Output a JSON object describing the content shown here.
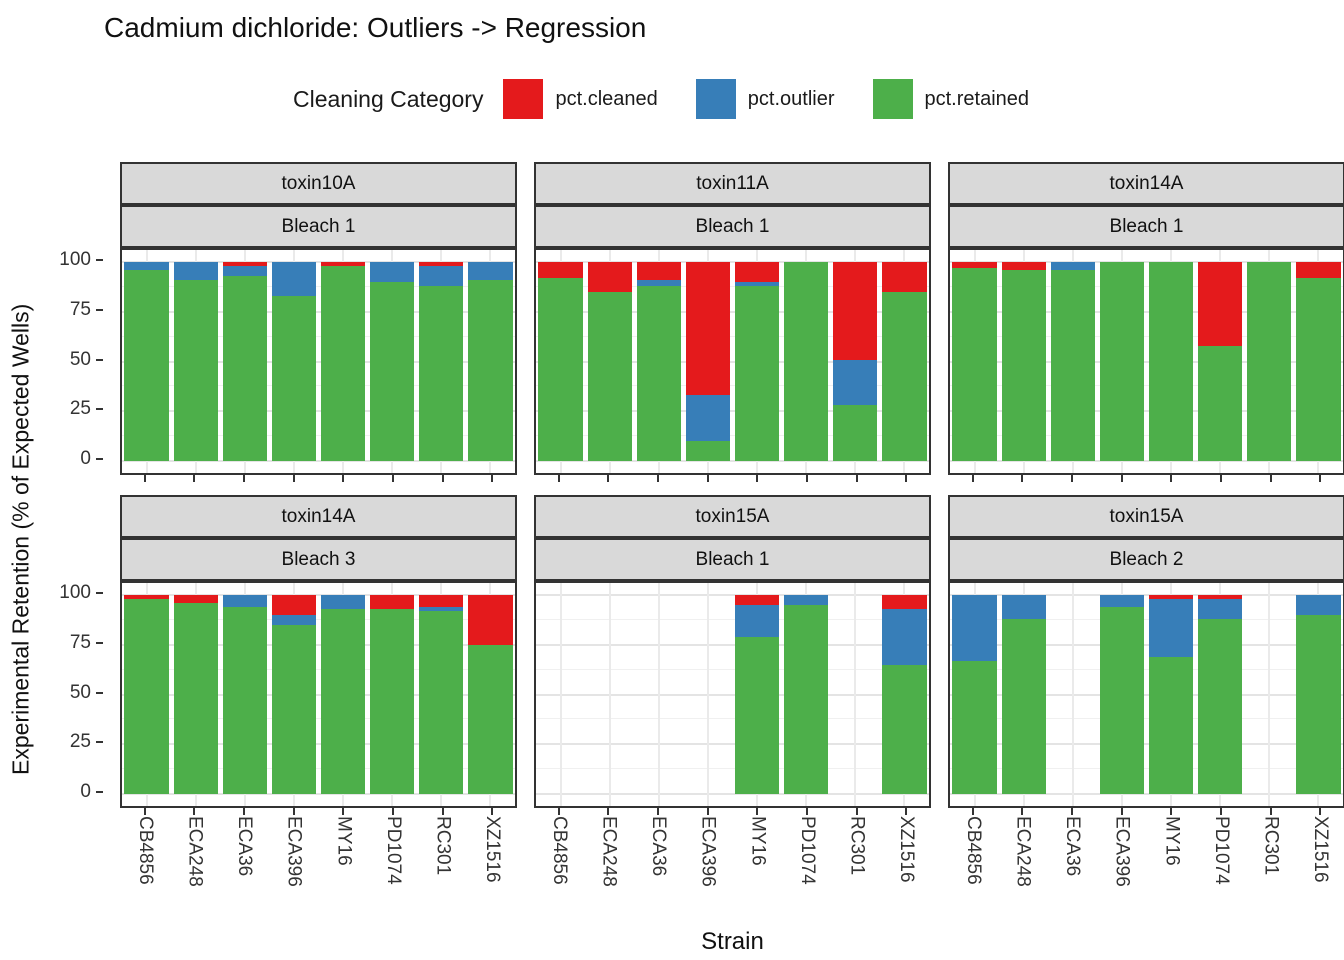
{
  "title": "Cadmium dichloride: Outliers -> Regression",
  "legend": {
    "title": "Cleaning Category",
    "items": [
      {
        "label": "pct.cleaned",
        "color": "#E41A1C"
      },
      {
        "label": "pct.outlier",
        "color": "#377EB8"
      },
      {
        "label": "pct.retained",
        "color": "#4DAF4A"
      }
    ]
  },
  "chart_data": {
    "type": "bar",
    "stacked": true,
    "title": "Cadmium dichloride: Outliers -> Regression",
    "xlabel": "Strain",
    "ylabel": "Experimental Retention (% of Expected Wells)",
    "ylim": [
      0,
      100
    ],
    "yticks": [
      0,
      25,
      50,
      75,
      100
    ],
    "grid": true,
    "legend_position": "top",
    "categories": [
      "CB4856",
      "ECA248",
      "ECA36",
      "ECA396",
      "MY16",
      "PD1074",
      "RC301",
      "XZ1516"
    ],
    "series_names": [
      "pct.cleaned",
      "pct.outlier",
      "pct.retained"
    ],
    "colors": {
      "pct.cleaned": "#E41A1C",
      "pct.outlier": "#377EB8",
      "pct.retained": "#4DAF4A"
    },
    "facets": [
      {
        "toxin": "toxin10A",
        "bleach": "Bleach 1",
        "bars": [
          {
            "strain": "CB4856",
            "pct.cleaned": 0,
            "pct.outlier": 4,
            "pct.retained": 96
          },
          {
            "strain": "ECA248",
            "pct.cleaned": 0,
            "pct.outlier": 9,
            "pct.retained": 91
          },
          {
            "strain": "ECA36",
            "pct.cleaned": 2,
            "pct.outlier": 5,
            "pct.retained": 93
          },
          {
            "strain": "ECA396",
            "pct.cleaned": 0,
            "pct.outlier": 17,
            "pct.retained": 83
          },
          {
            "strain": "MY16",
            "pct.cleaned": 2,
            "pct.outlier": 0,
            "pct.retained": 98
          },
          {
            "strain": "PD1074",
            "pct.cleaned": 0,
            "pct.outlier": 10,
            "pct.retained": 90
          },
          {
            "strain": "RC301",
            "pct.cleaned": 2,
            "pct.outlier": 10,
            "pct.retained": 88
          },
          {
            "strain": "XZ1516",
            "pct.cleaned": 0,
            "pct.outlier": 9,
            "pct.retained": 91
          }
        ]
      },
      {
        "toxin": "toxin11A",
        "bleach": "Bleach 1",
        "bars": [
          {
            "strain": "CB4856",
            "pct.cleaned": 8,
            "pct.outlier": 0,
            "pct.retained": 92
          },
          {
            "strain": "ECA248",
            "pct.cleaned": 15,
            "pct.outlier": 0,
            "pct.retained": 85
          },
          {
            "strain": "ECA36",
            "pct.cleaned": 9,
            "pct.outlier": 3,
            "pct.retained": 88
          },
          {
            "strain": "ECA396",
            "pct.cleaned": 67,
            "pct.outlier": 23,
            "pct.retained": 10
          },
          {
            "strain": "MY16",
            "pct.cleaned": 10,
            "pct.outlier": 2,
            "pct.retained": 88
          },
          {
            "strain": "PD1074",
            "pct.cleaned": 0,
            "pct.outlier": 0,
            "pct.retained": 100
          },
          {
            "strain": "RC301",
            "pct.cleaned": 49,
            "pct.outlier": 23,
            "pct.retained": 28
          },
          {
            "strain": "XZ1516",
            "pct.cleaned": 15,
            "pct.outlier": 0,
            "pct.retained": 85
          }
        ]
      },
      {
        "toxin": "toxin14A",
        "bleach": "Bleach 1",
        "bars": [
          {
            "strain": "CB4856",
            "pct.cleaned": 3,
            "pct.outlier": 0,
            "pct.retained": 97
          },
          {
            "strain": "ECA248",
            "pct.cleaned": 4,
            "pct.outlier": 0,
            "pct.retained": 96
          },
          {
            "strain": "ECA36",
            "pct.cleaned": 0,
            "pct.outlier": 4,
            "pct.retained": 96
          },
          {
            "strain": "ECA396",
            "pct.cleaned": 0,
            "pct.outlier": 0,
            "pct.retained": 100
          },
          {
            "strain": "MY16",
            "pct.cleaned": 0,
            "pct.outlier": 0,
            "pct.retained": 100
          },
          {
            "strain": "PD1074",
            "pct.cleaned": 42,
            "pct.outlier": 0,
            "pct.retained": 58
          },
          {
            "strain": "RC301",
            "pct.cleaned": 0,
            "pct.outlier": 0,
            "pct.retained": 100
          },
          {
            "strain": "XZ1516",
            "pct.cleaned": 8,
            "pct.outlier": 0,
            "pct.retained": 92
          }
        ]
      },
      {
        "toxin": "toxin14A",
        "bleach": "Bleach 3",
        "bars": [
          {
            "strain": "CB4856",
            "pct.cleaned": 2,
            "pct.outlier": 0,
            "pct.retained": 98
          },
          {
            "strain": "ECA248",
            "pct.cleaned": 4,
            "pct.outlier": 0,
            "pct.retained": 96
          },
          {
            "strain": "ECA36",
            "pct.cleaned": 0,
            "pct.outlier": 6,
            "pct.retained": 94
          },
          {
            "strain": "ECA396",
            "pct.cleaned": 10,
            "pct.outlier": 5,
            "pct.retained": 85
          },
          {
            "strain": "MY16",
            "pct.cleaned": 0,
            "pct.outlier": 7,
            "pct.retained": 93
          },
          {
            "strain": "PD1074",
            "pct.cleaned": 7,
            "pct.outlier": 0,
            "pct.retained": 93
          },
          {
            "strain": "RC301",
            "pct.cleaned": 6,
            "pct.outlier": 2,
            "pct.retained": 92
          },
          {
            "strain": "XZ1516",
            "pct.cleaned": 25,
            "pct.outlier": 0,
            "pct.retained": 75
          }
        ]
      },
      {
        "toxin": "toxin15A",
        "bleach": "Bleach 1",
        "bars": [
          {
            "strain": "CB4856",
            "pct.cleaned": null,
            "pct.outlier": null,
            "pct.retained": null
          },
          {
            "strain": "ECA248",
            "pct.cleaned": null,
            "pct.outlier": null,
            "pct.retained": null
          },
          {
            "strain": "ECA36",
            "pct.cleaned": null,
            "pct.outlier": null,
            "pct.retained": null
          },
          {
            "strain": "ECA396",
            "pct.cleaned": null,
            "pct.outlier": null,
            "pct.retained": null
          },
          {
            "strain": "MY16",
            "pct.cleaned": 5,
            "pct.outlier": 16,
            "pct.retained": 79
          },
          {
            "strain": "PD1074",
            "pct.cleaned": 0,
            "pct.outlier": 5,
            "pct.retained": 95
          },
          {
            "strain": "RC301",
            "pct.cleaned": null,
            "pct.outlier": null,
            "pct.retained": null
          },
          {
            "strain": "XZ1516",
            "pct.cleaned": 7,
            "pct.outlier": 28,
            "pct.retained": 65
          }
        ]
      },
      {
        "toxin": "toxin15A",
        "bleach": "Bleach 2",
        "bars": [
          {
            "strain": "CB4856",
            "pct.cleaned": 0,
            "pct.outlier": 33,
            "pct.retained": 67
          },
          {
            "strain": "ECA248",
            "pct.cleaned": 0,
            "pct.outlier": 12,
            "pct.retained": 88
          },
          {
            "strain": "ECA36",
            "pct.cleaned": null,
            "pct.outlier": null,
            "pct.retained": null
          },
          {
            "strain": "ECA396",
            "pct.cleaned": 0,
            "pct.outlier": 6,
            "pct.retained": 94
          },
          {
            "strain": "MY16",
            "pct.cleaned": 2,
            "pct.outlier": 29,
            "pct.retained": 69
          },
          {
            "strain": "PD1074",
            "pct.cleaned": 2,
            "pct.outlier": 10,
            "pct.retained": 88
          },
          {
            "strain": "RC301",
            "pct.cleaned": null,
            "pct.outlier": null,
            "pct.retained": null
          },
          {
            "strain": "XZ1516",
            "pct.cleaned": 0,
            "pct.outlier": 10,
            "pct.retained": 90
          }
        ]
      }
    ]
  }
}
